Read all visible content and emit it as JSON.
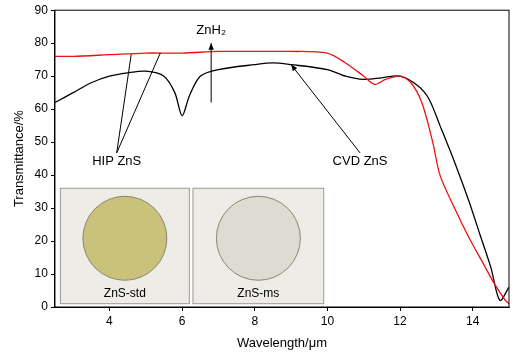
{
  "chart_data": {
    "type": "line",
    "x_label": "Wavelength/μm",
    "y_label": "Transmittance/%",
    "xlim": [
      2.5,
      15
    ],
    "xticks": [
      4,
      6,
      8,
      10,
      12,
      14
    ],
    "ylim": [
      0,
      90
    ],
    "yticks": [
      0,
      10,
      20,
      30,
      40,
      50,
      60,
      70,
      80,
      90
    ],
    "grid": false,
    "series": [
      {
        "name": "HIP ZnS",
        "color": "#ee1111",
        "x": [
          2.5,
          3,
          4,
          5,
          6,
          7,
          8,
          9,
          10,
          10.5,
          11,
          11.3,
          11.6,
          12,
          12.3,
          12.6,
          12.9,
          13.1,
          13.5,
          13.9,
          14.3,
          14.6,
          14.9,
          15
        ],
        "values": [
          76,
          76,
          76.5,
          77,
          77,
          77.5,
          77.5,
          77.5,
          77,
          74,
          70,
          67.5,
          69,
          70,
          68,
          62,
          50,
          40,
          30,
          21,
          13,
          7,
          2,
          1
        ]
      },
      {
        "name": "CVD ZnS",
        "color": "#000000",
        "x": [
          2.5,
          3,
          3.5,
          4,
          4.5,
          5,
          5.5,
          5.8,
          6,
          6.2,
          6.5,
          7,
          8,
          8.5,
          9,
          10,
          10.5,
          11,
          11.5,
          12,
          12.5,
          12.8,
          13.1,
          13.5,
          13.9,
          14.2,
          14.5,
          14.75,
          15
        ],
        "values": [
          62,
          65,
          68,
          70,
          71,
          71.5,
          70,
          65,
          58,
          64,
          70,
          72,
          73.5,
          74,
          73.5,
          72,
          70,
          69,
          69.5,
          70,
          67,
          63,
          55,
          44,
          32,
          22,
          12,
          2,
          6
        ]
      }
    ],
    "annotations": [
      "ZnH₂"
    ],
    "insets": [
      {
        "label": "ZnS-std",
        "color": "#c9c27a"
      },
      {
        "label": "ZnS-ms",
        "color": "#dddbd2"
      }
    ]
  }
}
